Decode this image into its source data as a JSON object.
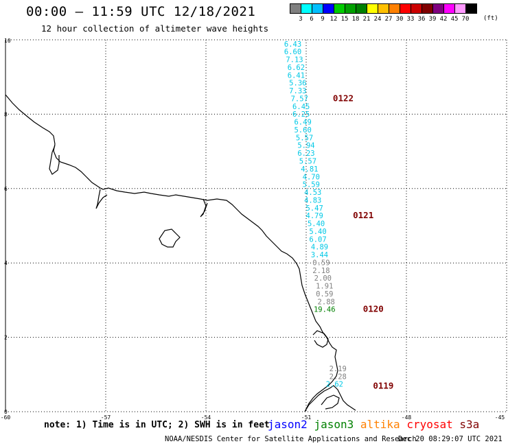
{
  "title": "00:00 – 11:59 UTC 12/18/2021",
  "subtitle": "12 hour collection of altimeter wave heights",
  "color_scale": {
    "labels": [
      "3",
      "6",
      "9",
      "12",
      "15",
      "18",
      "21",
      "24",
      "27",
      "30",
      "33",
      "36",
      "39",
      "42",
      "45",
      "70"
    ],
    "unit": "(ft)",
    "colors": [
      "#808080",
      "#00ffff",
      "#00bfff",
      "#0000ff",
      "#00cc00",
      "#00a000",
      "#008000",
      "#ffff00",
      "#ffc000",
      "#ff8000",
      "#ff0000",
      "#cc0000",
      "#800000",
      "#800080",
      "#ff00ff",
      "#ff99ff",
      "#000000"
    ]
  },
  "map": {
    "lon_ticks": [
      "-60",
      "-57",
      "-54",
      "-51",
      "-48",
      "-45"
    ],
    "lat_ticks": [
      "0",
      "2",
      "4",
      "6",
      "8",
      "10"
    ],
    "lon_range": [
      -60,
      -45
    ],
    "lat_range": [
      0,
      10
    ]
  },
  "wave_heights": [
    {
      "v": "6.43",
      "lon": -51.4,
      "lat": 9.82,
      "c": "#00c8e6"
    },
    {
      "v": "6.60",
      "lon": -51.4,
      "lat": 9.61,
      "c": "#00c8e6"
    },
    {
      "v": "7.13",
      "lon": -51.35,
      "lat": 9.4,
      "c": "#00c8e6"
    },
    {
      "v": "6.62",
      "lon": -51.3,
      "lat": 9.19,
      "c": "#00c8e6"
    },
    {
      "v": "6.41",
      "lon": -51.3,
      "lat": 8.98,
      "c": "#00c8e6"
    },
    {
      "v": "5.36",
      "lon": -51.25,
      "lat": 8.77,
      "c": "#00c8e6"
    },
    {
      "v": "7.33",
      "lon": -51.25,
      "lat": 8.56,
      "c": "#00c8e6"
    },
    {
      "v": "7.57",
      "lon": -51.2,
      "lat": 8.35,
      "c": "#00c8e6"
    },
    {
      "v": "6.45",
      "lon": -51.15,
      "lat": 8.14,
      "c": "#00c8e6"
    },
    {
      "v": "6.25",
      "lon": -51.15,
      "lat": 7.93,
      "c": "#00c8e6"
    },
    {
      "v": "6.49",
      "lon": -51.1,
      "lat": 7.72,
      "c": "#00c8e6"
    },
    {
      "v": "5.60",
      "lon": -51.1,
      "lat": 7.51,
      "c": "#00c8e6"
    },
    {
      "v": "5.57",
      "lon": -51.05,
      "lat": 7.3,
      "c": "#00c8e6"
    },
    {
      "v": "5.94",
      "lon": -51.0,
      "lat": 7.09,
      "c": "#00c8e6"
    },
    {
      "v": "6.23",
      "lon": -51.0,
      "lat": 6.88,
      "c": "#00c8e6"
    },
    {
      "v": "5.57",
      "lon": -50.95,
      "lat": 6.67,
      "c": "#00c8e6"
    },
    {
      "v": "4.81",
      "lon": -50.9,
      "lat": 6.46,
      "c": "#00c8e6"
    },
    {
      "v": "4.70",
      "lon": -50.85,
      "lat": 6.25,
      "c": "#00c8e6"
    },
    {
      "v": "5.59",
      "lon": -50.85,
      "lat": 6.04,
      "c": "#00c8e6"
    },
    {
      "v": "4.53",
      "lon": -50.8,
      "lat": 5.83,
      "c": "#00c8e6"
    },
    {
      "v": "4.83",
      "lon": -50.8,
      "lat": 5.62,
      "c": "#00c8e6"
    },
    {
      "v": "5.47",
      "lon": -50.75,
      "lat": 5.41,
      "c": "#00c8e6"
    },
    {
      "v": "4.79",
      "lon": -50.75,
      "lat": 5.2,
      "c": "#00c8e6"
    },
    {
      "v": "5.40",
      "lon": -50.7,
      "lat": 4.99,
      "c": "#00c8e6"
    },
    {
      "v": "5.40",
      "lon": -50.65,
      "lat": 4.78,
      "c": "#00c8e6"
    },
    {
      "v": "6.07",
      "lon": -50.65,
      "lat": 4.57,
      "c": "#00c8e6"
    },
    {
      "v": "4.89",
      "lon": -50.6,
      "lat": 4.36,
      "c": "#00c8e6"
    },
    {
      "v": "3.44",
      "lon": -50.6,
      "lat": 4.15,
      "c": "#00c8e6"
    },
    {
      "v": "0.59",
      "lon": -50.55,
      "lat": 3.94,
      "c": "#808080"
    },
    {
      "v": "2.18",
      "lon": -50.55,
      "lat": 3.73,
      "c": "#808080"
    },
    {
      "v": "2.00",
      "lon": -50.5,
      "lat": 3.52,
      "c": "#808080"
    },
    {
      "v": "1.91",
      "lon": -50.45,
      "lat": 3.31,
      "c": "#808080"
    },
    {
      "v": "0.59",
      "lon": -50.45,
      "lat": 3.1,
      "c": "#808080"
    },
    {
      "v": "2.88",
      "lon": -50.4,
      "lat": 2.89,
      "c": "#808080"
    },
    {
      "v": "19.46",
      "lon": -50.45,
      "lat": 2.68,
      "c": "#008000"
    },
    {
      "v": "2.19",
      "lon": -50.05,
      "lat": 1.09,
      "c": "#808080"
    },
    {
      "v": "2.28",
      "lon": -50.05,
      "lat": 0.88,
      "c": "#808080"
    },
    {
      "v": "2.62",
      "lon": -50.15,
      "lat": 0.67,
      "c": "#00c8e6"
    }
  ],
  "pass_labels": [
    {
      "text": "0122",
      "lon": -50.2,
      "lat": 8.35
    },
    {
      "text": "0121",
      "lon": -49.6,
      "lat": 5.2
    },
    {
      "text": "0120",
      "lon": -49.3,
      "lat": 2.68
    },
    {
      "text": "0119",
      "lon": -49.0,
      "lat": 0.62
    }
  ],
  "note": "note: 1) Time is in UTC; 2) SWH is in feet",
  "satellites": [
    {
      "name": "jason2",
      "color": "#0000ff"
    },
    {
      "name": "jason3",
      "color": "#008000"
    },
    {
      "name": "altika",
      "color": "#ff8000"
    },
    {
      "name": "cryosat",
      "color": "#ff0000"
    },
    {
      "name": "s3a",
      "color": "#800000"
    }
  ],
  "footer_left": "NOAA/NESDIS Center for Satellite Applications and Research",
  "footer_right": "Dec 20 08:29:07 UTC 2021"
}
